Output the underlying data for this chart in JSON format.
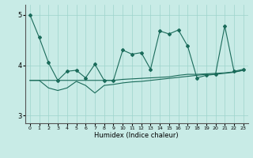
{
  "xlabel": "Humidex (Indice chaleur)",
  "background_color": "#c8ebe6",
  "grid_color": "#9dd4cc",
  "line_color": "#1a6b5a",
  "xlim": [
    -0.5,
    23.5
  ],
  "ylim": [
    2.85,
    5.2
  ],
  "yticks": [
    3,
    4,
    5
  ],
  "xticks": [
    0,
    1,
    2,
    3,
    4,
    5,
    6,
    7,
    8,
    9,
    10,
    11,
    12,
    13,
    14,
    15,
    16,
    17,
    18,
    19,
    20,
    21,
    22,
    23
  ],
  "line1_x": [
    0,
    1,
    2,
    3,
    4,
    5,
    6,
    7,
    8,
    9,
    10,
    11,
    12,
    13,
    14,
    15,
    16,
    17,
    18,
    19,
    20,
    21,
    22,
    23
  ],
  "line1_y": [
    5.0,
    4.55,
    4.05,
    3.7,
    3.88,
    3.9,
    3.75,
    4.02,
    3.7,
    3.7,
    4.3,
    4.22,
    4.25,
    3.92,
    4.68,
    4.62,
    4.7,
    4.38,
    3.75,
    3.8,
    3.82,
    4.78,
    3.88,
    3.92
  ],
  "line2_x": [
    0,
    1,
    2,
    3,
    4,
    5,
    6,
    7,
    8,
    9,
    10,
    11,
    12,
    13,
    14,
    15,
    16,
    17,
    18,
    19,
    20,
    21,
    22,
    23
  ],
  "line2_y": [
    3.7,
    3.7,
    3.7,
    3.7,
    3.7,
    3.7,
    3.7,
    3.7,
    3.7,
    3.7,
    3.72,
    3.73,
    3.74,
    3.75,
    3.76,
    3.77,
    3.8,
    3.82,
    3.82,
    3.83,
    3.84,
    3.85,
    3.87,
    3.9
  ],
  "line3_x": [
    0,
    1,
    2,
    3,
    4,
    5,
    6,
    7,
    8,
    9,
    10,
    11,
    12,
    13,
    14,
    15,
    16,
    17,
    18,
    19,
    20,
    21,
    22,
    23
  ],
  "line3_y": [
    3.7,
    3.7,
    3.55,
    3.5,
    3.55,
    3.68,
    3.6,
    3.45,
    3.6,
    3.62,
    3.65,
    3.67,
    3.68,
    3.7,
    3.72,
    3.74,
    3.76,
    3.78,
    3.8,
    3.82,
    3.82,
    3.84,
    3.86,
    3.9
  ]
}
